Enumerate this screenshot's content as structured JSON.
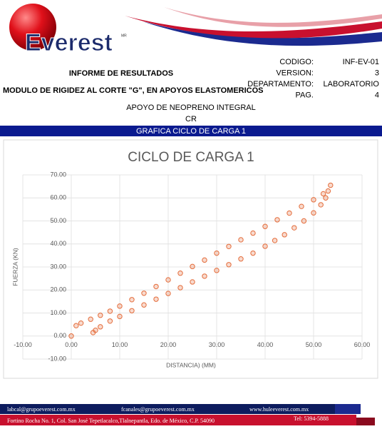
{
  "header": {
    "logo": "Everest",
    "logo_mark": "MR",
    "report": "INFORME DE RESULTADOS",
    "subject": "MODULO DE RIGIDEZ AL CORTE \"G\", EN APOYOS ELASTOMERICOS",
    "fields": [
      {
        "label": "CODIGO:",
        "value": "INF-EV-01"
      },
      {
        "label": "VERSION:",
        "value": "3"
      },
      {
        "label": "DEPARTAMENTO:",
        "value": "LABORATORIO"
      },
      {
        "label": "PAG.",
        "value": "4"
      }
    ],
    "specimen": "APOYO DE NEOPRENO INTEGRAL",
    "compound": "CR",
    "section": "GRAFICA CICLO DE CARGA 1"
  },
  "chart_data": {
    "type": "scatter",
    "title": "CICLO DE CARGA 1",
    "x_label": "DISTANCIA) (MM)",
    "y_label": "FUERZA (KN)",
    "xlim": [
      -10,
      60
    ],
    "ylim": [
      -10,
      70
    ],
    "grid": true,
    "xticks": [
      {
        "value": -10,
        "label": "-10.00"
      },
      {
        "value": 0,
        "label": "0.00"
      },
      {
        "value": 10,
        "label": "10.00"
      },
      {
        "value": 20,
        "label": "20.00"
      },
      {
        "value": 30,
        "label": "30.00"
      },
      {
        "value": 40,
        "label": "40.00"
      },
      {
        "value": 50,
        "label": "50.00"
      },
      {
        "value": 60,
        "label": "60.00"
      }
    ],
    "yticks": [
      {
        "value": -10,
        "label": "-10.00"
      },
      {
        "value": 0,
        "label": "0.00"
      },
      {
        "value": 10,
        "label": "10.00"
      },
      {
        "value": 20,
        "label": "20.00"
      },
      {
        "value": 30,
        "label": "30.00"
      },
      {
        "value": 40,
        "label": "40.00"
      },
      {
        "value": 50,
        "label": "50.00"
      },
      {
        "value": 60,
        "label": "60.00"
      },
      {
        "value": 70,
        "label": "70.00"
      }
    ],
    "series": [
      {
        "color": "#e46c3a",
        "x": [
          0,
          1,
          2,
          4,
          6,
          8,
          10,
          12.5,
          15,
          17.5,
          20,
          22.5,
          25,
          27.5,
          30,
          32.5,
          35,
          37.5,
          40,
          42.5,
          45,
          47.5,
          50,
          52,
          53.5
        ],
        "values": [
          0,
          4.5,
          5.6,
          7.3,
          9,
          10.8,
          13,
          15.8,
          18.6,
          21.5,
          24.4,
          27.3,
          30.2,
          33,
          36,
          38.9,
          41.8,
          44.7,
          47.6,
          50.5,
          53.4,
          56.3,
          59.2,
          61.8,
          65.5
        ]
      },
      {
        "color": "#e46c3a",
        "x": [
          53,
          52.5,
          51.5,
          50,
          48,
          46,
          44,
          42,
          40,
          37.5,
          35,
          32.5,
          30,
          27.5,
          25,
          22.5,
          20,
          17.5,
          15,
          12.5,
          10,
          8,
          6,
          5,
          4.5
        ],
        "values": [
          63,
          60,
          57,
          53.5,
          50,
          47,
          44,
          41.5,
          39,
          36,
          33.5,
          31,
          28.5,
          26,
          23.5,
          21,
          18.5,
          16,
          13.5,
          11,
          8.5,
          6.5,
          4,
          2.5,
          1.5
        ]
      }
    ]
  },
  "footer": {
    "emails": [
      "labcal@grupoeverest.com.mx",
      "fcanales@grupoeverest.com.mx"
    ],
    "website": "www.huleeverest.com.mx",
    "address": "Fortino Rocha No. 1, Col. San José Tepetlacalco,Tlalnepantla, Edo. de México, C.P. 54090",
    "phone": "Tel: 5394-5888"
  }
}
